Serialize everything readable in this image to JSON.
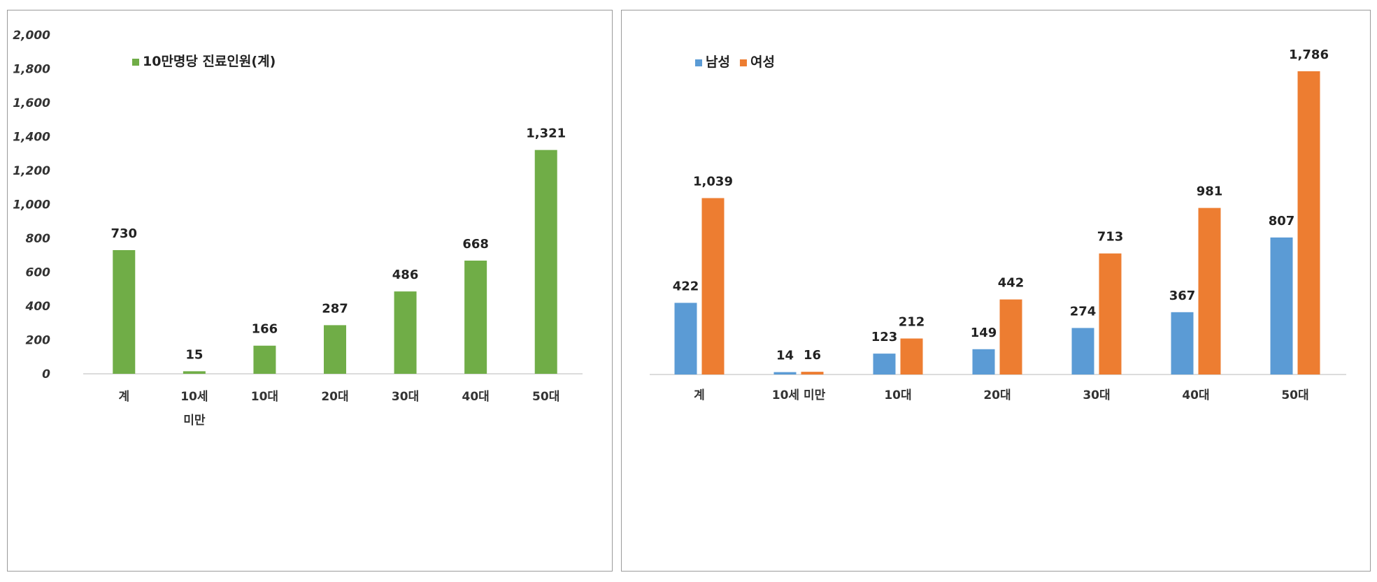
{
  "chart_data": [
    {
      "type": "bar",
      "title": "",
      "xlabel": "",
      "ylabel": "",
      "ylim": [
        0,
        2000
      ],
      "y_ticks": [
        "0",
        "200",
        "400",
        "600",
        "800",
        "1,000",
        "1,200",
        "1,400",
        "1,600",
        "1,800",
        "2,000"
      ],
      "categories": [
        [
          "계"
        ],
        [
          "10세",
          "미만"
        ],
        [
          "10대"
        ],
        [
          "20대"
        ],
        [
          "30대"
        ],
        [
          "40대"
        ],
        [
          "50대"
        ]
      ],
      "series": [
        {
          "name": "10만명당 진료인원(계)",
          "color": "#70ad47",
          "values": [
            730,
            15,
            166,
            287,
            486,
            668,
            1321
          ],
          "labels": [
            "730",
            "15",
            "166",
            "287",
            "486",
            "668",
            "1,321"
          ]
        }
      ],
      "legend": "top-left",
      "grid": false
    },
    {
      "type": "bar",
      "title": "",
      "xlabel": "",
      "ylabel": "",
      "ylim": [
        0,
        2000
      ],
      "categories": [
        [
          "계"
        ],
        [
          "10세 미만"
        ],
        [
          "10대"
        ],
        [
          "20대"
        ],
        [
          "30대"
        ],
        [
          "40대"
        ],
        [
          "50대"
        ]
      ],
      "series": [
        {
          "name": "남성",
          "color": "#5b9bd5",
          "values": [
            422,
            14,
            123,
            149,
            274,
            367,
            807
          ],
          "labels": [
            "422",
            "14",
            "123",
            "149",
            "274",
            "367",
            "807"
          ]
        },
        {
          "name": "여성",
          "color": "#ed7d31",
          "values": [
            1039,
            16,
            212,
            442,
            713,
            981,
            1786
          ],
          "labels": [
            "1,039",
            "16",
            "212",
            "442",
            "713",
            "981",
            "1,786"
          ]
        }
      ],
      "legend": "top-left",
      "grid": false
    }
  ]
}
